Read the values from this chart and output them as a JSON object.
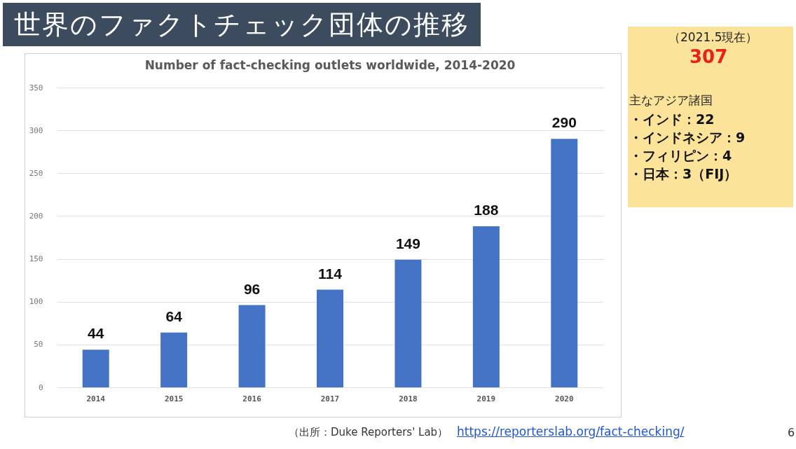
{
  "chart_data": {
    "type": "bar",
    "title": "世界のファクトチェック団体の推移",
    "subtitle": "Number of fact-checking outlets worldwide, 2014-2020",
    "categories": [
      "2014",
      "2015",
      "2016",
      "2017",
      "2018",
      "2019",
      "2020"
    ],
    "values": [
      44,
      64,
      96,
      114,
      149,
      188,
      290
    ],
    "color": "#4472c4",
    "data_labels": true,
    "ylim": [
      0,
      350
    ],
    "yticks": [
      0,
      50,
      100,
      150,
      200,
      250,
      300,
      350
    ],
    "grid": "y",
    "annotations": [
      "（2021.5現在）",
      "307",
      "主なアジア諸国",
      "・インド：22",
      "・インドネシア：9",
      "・フィリピン：4",
      "・日本：3（FIJ）",
      "（出所：Duke Reporters' Lab）",
      "https://reporterslab.org/fact-checking/",
      "6"
    ]
  }
}
